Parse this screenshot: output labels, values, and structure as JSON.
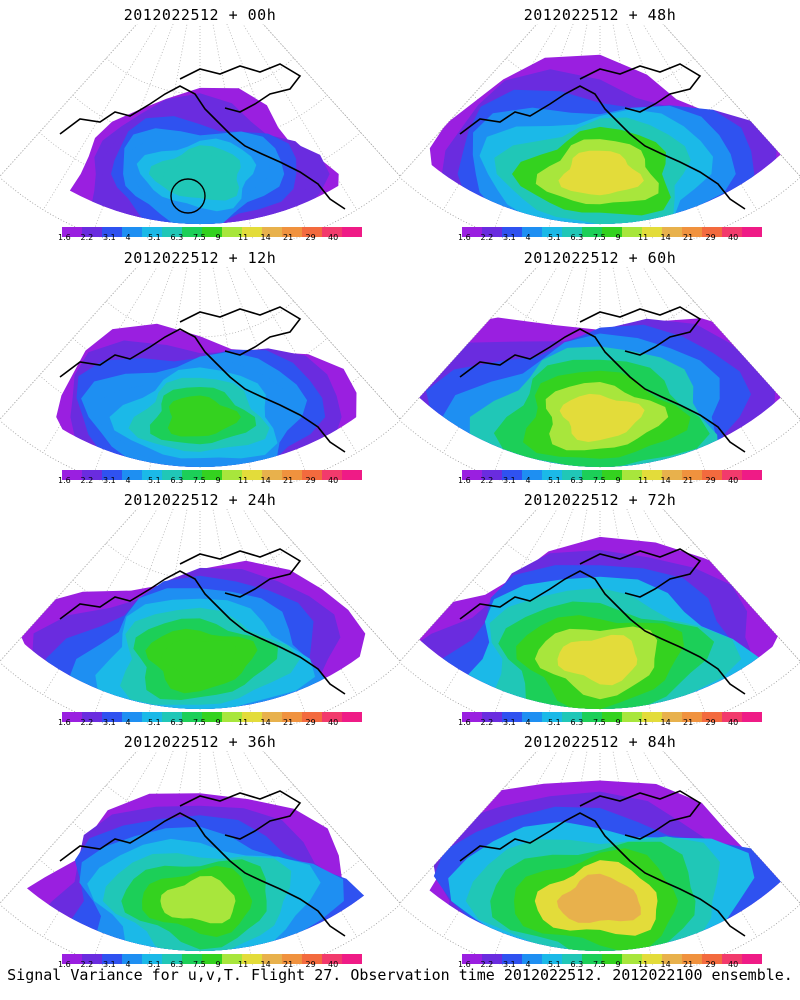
{
  "caption": "Signal Variance for u,v,T. Flight 27. Observation time 2012022512. 2012022100 ensemble.",
  "colorbar": {
    "labels": [
      "1.6",
      "2.2",
      "3.1",
      "4",
      "5.1",
      "6.3",
      "7.5",
      "9",
      "11",
      "14",
      "21",
      "29",
      "40"
    ],
    "colors": [
      "#9a1fe0",
      "#6a2cdf",
      "#2f52f0",
      "#1e8ff2",
      "#1bb9e8",
      "#20c7b7",
      "#1ccf58",
      "#34d21f",
      "#a8e63c",
      "#e3dc3a",
      "#e8b14c",
      "#f0923e",
      "#f36a3e",
      "#f23a6c",
      "#ef1b86"
    ]
  },
  "panels": [
    {
      "title": "2012022512 + 00h",
      "intensity": 0.35,
      "circle_marker": true
    },
    {
      "title": "2012022512 + 48h",
      "intensity": 0.75,
      "circle_marker": false
    },
    {
      "title": "2012022512 + 12h",
      "intensity": 0.5,
      "circle_marker": false
    },
    {
      "title": "2012022512 + 60h",
      "intensity": 0.8,
      "circle_marker": false
    },
    {
      "title": "2012022512 + 24h",
      "intensity": 0.6,
      "circle_marker": false
    },
    {
      "title": "2012022512 + 72h",
      "intensity": 0.85,
      "circle_marker": false
    },
    {
      "title": "2012022512 + 36h",
      "intensity": 0.7,
      "circle_marker": false
    },
    {
      "title": "2012022512 + 84h",
      "intensity": 0.9,
      "circle_marker": false
    }
  ]
}
